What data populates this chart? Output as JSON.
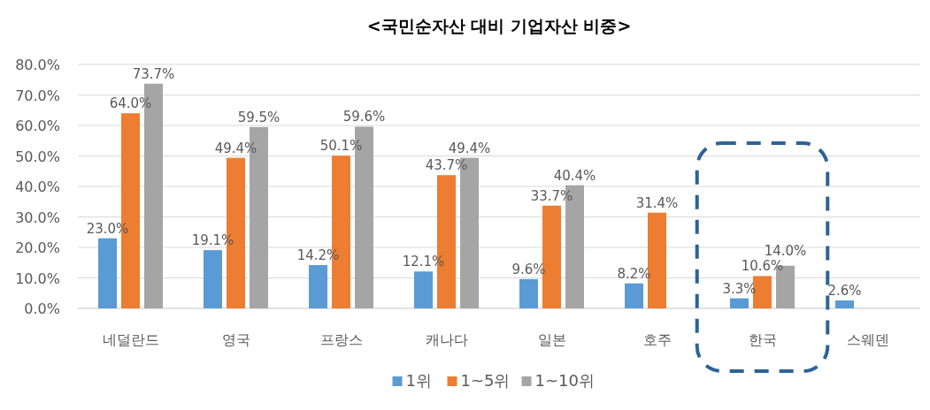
{
  "chart_data": {
    "type": "bar",
    "title": "<국민순자산 대비 기업자산 비중>",
    "categories": [
      "네덜란드",
      "영국",
      "프랑스",
      "캐나다",
      "일본",
      "호주",
      "한국",
      "스웨덴"
    ],
    "series": [
      {
        "name": "1위",
        "color": "#5b9bd5",
        "values": [
          23.0,
          19.1,
          14.2,
          12.1,
          9.6,
          8.2,
          3.3,
          2.6
        ],
        "value_labels": [
          "23.0%",
          "19.1%",
          "14.2%",
          "12.1%",
          "9.6%",
          "8.2%",
          "3.3%",
          "2.6%"
        ]
      },
      {
        "name": "1~5위",
        "color": "#ed7d31",
        "values": [
          64.0,
          49.4,
          50.1,
          43.7,
          33.7,
          31.4,
          10.6,
          null
        ],
        "value_labels": [
          "64.0%",
          "49.4%",
          "50.1%",
          "43.7%",
          "33.7%",
          "31.4%",
          "10.6%",
          null
        ]
      },
      {
        "name": "1~10위",
        "color": "#a5a5a5",
        "values": [
          73.7,
          59.5,
          59.6,
          49.4,
          40.4,
          null,
          14.0,
          null
        ],
        "value_labels": [
          "73.7%",
          "59.5%",
          "59.6%",
          "49.4%",
          "40.4%",
          null,
          "14.0%",
          null
        ]
      }
    ],
    "ylim": [
      0,
      80
    ],
    "yticks": [
      {
        "value": 0,
        "label": "0.0%"
      },
      {
        "value": 10,
        "label": "10.0%"
      },
      {
        "value": 20,
        "label": "20.0%"
      },
      {
        "value": 30,
        "label": "30.0%"
      },
      {
        "value": 40,
        "label": "40.0%"
      },
      {
        "value": 50,
        "label": "50.0%"
      },
      {
        "value": 60,
        "label": "60.0%"
      },
      {
        "value": 70,
        "label": "70.0%"
      },
      {
        "value": 80,
        "label": "80.0%"
      }
    ],
    "grid": "y",
    "legend": "bottom"
  }
}
